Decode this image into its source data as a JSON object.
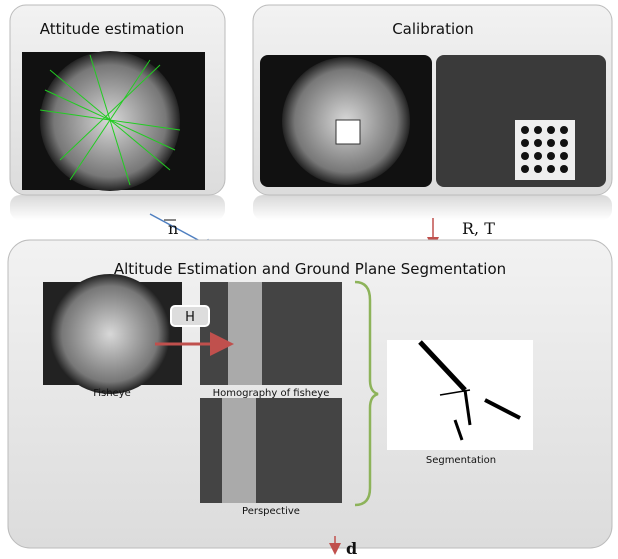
{
  "panels": {
    "attitude": {
      "title": "Attitude estimation"
    },
    "calibration": {
      "title": "Calibration"
    },
    "main": {
      "title": "Altitude Estimation and Ground Plane Segmentation",
      "homography_tag": "H",
      "captions": [
        "Fisheye",
        "Homography of fisheye",
        "Perspective",
        "Segmentation"
      ]
    }
  },
  "arrows": {
    "normal": "n",
    "extrinsics": "R, T",
    "output": "d"
  }
}
